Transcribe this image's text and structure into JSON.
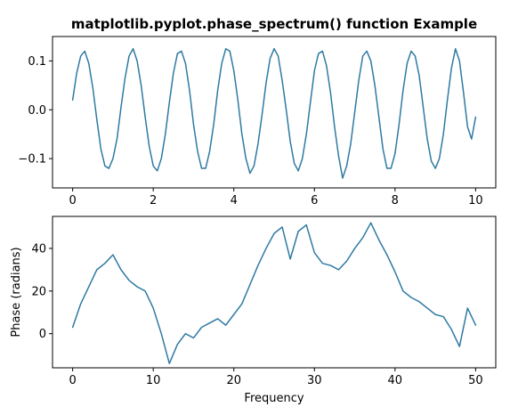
{
  "colors": {
    "line": "#2e7aa3",
    "axes": "#000000",
    "background": "#ffffff"
  },
  "chart_data": [
    {
      "type": "line",
      "title": "matplotlib.pyplot.phase_spectrum() function Example",
      "xlabel": "",
      "ylabel": "",
      "xlim": [
        -0.5,
        10.5
      ],
      "ylim": [
        -0.16,
        0.15
      ],
      "xticks": [
        0,
        2,
        4,
        6,
        8,
        10
      ],
      "yticks": [
        -0.1,
        0.0,
        0.1
      ],
      "xtick_labels": [
        "0",
        "2",
        "4",
        "6",
        "8",
        "10"
      ],
      "ytick_labels": [
        "−0.1",
        "0.0",
        "0.1"
      ],
      "grid": false,
      "series": [
        {
          "x": [
            0.0,
            0.1,
            0.2,
            0.3,
            0.4,
            0.5,
            0.6,
            0.7,
            0.8,
            0.9,
            1.0,
            1.1,
            1.2,
            1.3,
            1.4,
            1.5,
            1.6,
            1.7,
            1.8,
            1.9,
            2.0,
            2.1,
            2.2,
            2.3,
            2.4,
            2.5,
            2.6,
            2.7,
            2.8,
            2.9,
            3.0,
            3.1,
            3.2,
            3.3,
            3.4,
            3.5,
            3.6,
            3.7,
            3.8,
            3.9,
            4.0,
            4.1,
            4.2,
            4.3,
            4.4,
            4.5,
            4.6,
            4.7,
            4.8,
            4.9,
            5.0,
            5.1,
            5.2,
            5.3,
            5.4,
            5.5,
            5.6,
            5.7,
            5.8,
            5.9,
            6.0,
            6.1,
            6.2,
            6.3,
            6.4,
            6.5,
            6.6,
            6.7,
            6.8,
            6.9,
            7.0,
            7.1,
            7.2,
            7.3,
            7.4,
            7.5,
            7.6,
            7.7,
            7.8,
            7.9,
            8.0,
            8.1,
            8.2,
            8.3,
            8.4,
            8.5,
            8.6,
            8.7,
            8.8,
            8.9,
            9.0,
            9.1,
            9.2,
            9.3,
            9.4,
            9.5,
            9.6,
            9.7,
            9.8,
            9.9,
            10.0
          ],
          "values": [
            0.02,
            0.075,
            0.11,
            0.12,
            0.095,
            0.045,
            -0.02,
            -0.08,
            -0.115,
            -0.12,
            -0.1,
            -0.06,
            0.005,
            0.065,
            0.11,
            0.125,
            0.1,
            0.05,
            -0.015,
            -0.075,
            -0.115,
            -0.125,
            -0.1,
            -0.05,
            0.015,
            0.075,
            0.115,
            0.12,
            0.095,
            0.04,
            -0.03,
            -0.085,
            -0.12,
            -0.12,
            -0.085,
            -0.03,
            0.04,
            0.095,
            0.125,
            0.12,
            0.08,
            0.02,
            -0.05,
            -0.1,
            -0.13,
            -0.115,
            -0.07,
            -0.01,
            0.055,
            0.105,
            0.125,
            0.11,
            0.06,
            0.0,
            -0.065,
            -0.11,
            -0.125,
            -0.1,
            -0.05,
            0.015,
            0.08,
            0.115,
            0.12,
            0.09,
            0.035,
            -0.035,
            -0.095,
            -0.14,
            -0.115,
            -0.07,
            -0.005,
            0.06,
            0.11,
            0.12,
            0.1,
            0.05,
            -0.015,
            -0.08,
            -0.12,
            -0.12,
            -0.09,
            -0.03,
            0.04,
            0.095,
            0.12,
            0.11,
            0.07,
            0.005,
            -0.06,
            -0.105,
            -0.12,
            -0.1,
            -0.05,
            0.02,
            0.085,
            0.125,
            0.1,
            0.035,
            -0.035,
            -0.06,
            -0.015
          ]
        }
      ]
    },
    {
      "type": "line",
      "title": "",
      "xlabel": "Frequency",
      "ylabel": "Phase (radians)",
      "xlim": [
        -2.5,
        52.5
      ],
      "ylim": [
        -16,
        55
      ],
      "xticks": [
        0,
        10,
        20,
        30,
        40,
        50
      ],
      "yticks": [
        0,
        20,
        40
      ],
      "xtick_labels": [
        "0",
        "10",
        "20",
        "30",
        "40",
        "50"
      ],
      "ytick_labels": [
        "0",
        "20",
        "40"
      ],
      "grid": false,
      "series": [
        {
          "x": [
            0,
            1,
            2,
            3,
            4,
            5,
            6,
            7,
            8,
            9,
            10,
            11,
            12,
            13,
            14,
            15,
            16,
            17,
            18,
            19,
            20,
            21,
            22,
            23,
            24,
            25,
            26,
            27,
            28,
            29,
            30,
            31,
            32,
            33,
            34,
            35,
            36,
            37,
            38,
            39,
            40,
            41,
            42,
            43,
            44,
            45,
            46,
            47,
            48,
            49,
            50
          ],
          "values": [
            3,
            14,
            22,
            30,
            33,
            37,
            30,
            25,
            22,
            20,
            12,
            0,
            -14,
            -5,
            0,
            -2,
            3,
            5,
            7,
            4,
            9,
            14,
            23,
            32,
            40,
            47,
            50,
            35,
            48,
            51,
            38,
            33,
            32,
            30,
            34,
            40,
            45,
            52,
            44,
            37,
            29,
            20,
            17,
            15,
            12,
            9,
            8,
            2,
            -6,
            12,
            4
          ]
        }
      ]
    }
  ]
}
